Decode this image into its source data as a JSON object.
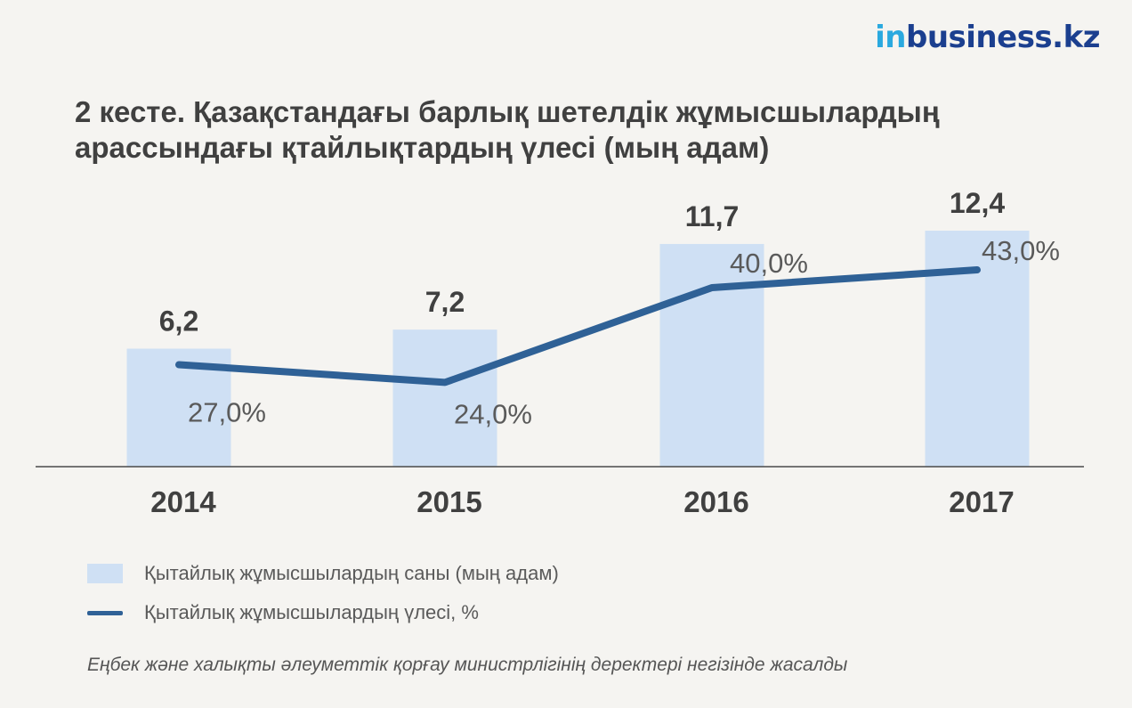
{
  "logo": {
    "prefix": "in",
    "rest": "business.kz"
  },
  "title_lines": [
    "2 кесте. Қазақстандағы барлық шетелдік жұмысшылардың",
    "арассындағы қтайлықтардың үлесі (мың адам)"
  ],
  "chart_data": {
    "type": "bar",
    "categories": [
      "2014",
      "2015",
      "2016",
      "2017"
    ],
    "series": [
      {
        "name": "Қытайлық жұмысшылардың  саны (мың адам)",
        "type": "bar",
        "values": [
          6.2,
          7.2,
          11.7,
          12.4
        ],
        "labels": [
          "6,2",
          "7,2",
          "11,7",
          "12,4"
        ],
        "color": "#cfe0f4"
      },
      {
        "name": "Қытайлық жұмысшылардың үлесі, %",
        "type": "line",
        "values": [
          27.0,
          24.0,
          40.0,
          43.0
        ],
        "labels": [
          "27,0%",
          "24,0%",
          "40,0%",
          "43,0%"
        ],
        "color": "#2f6196"
      }
    ],
    "grid": false,
    "legend_position": "bottom-left"
  },
  "source": "Еңбек және халықты әлеуметтік қорғау министрлігінің деректері негізінде жасалды"
}
